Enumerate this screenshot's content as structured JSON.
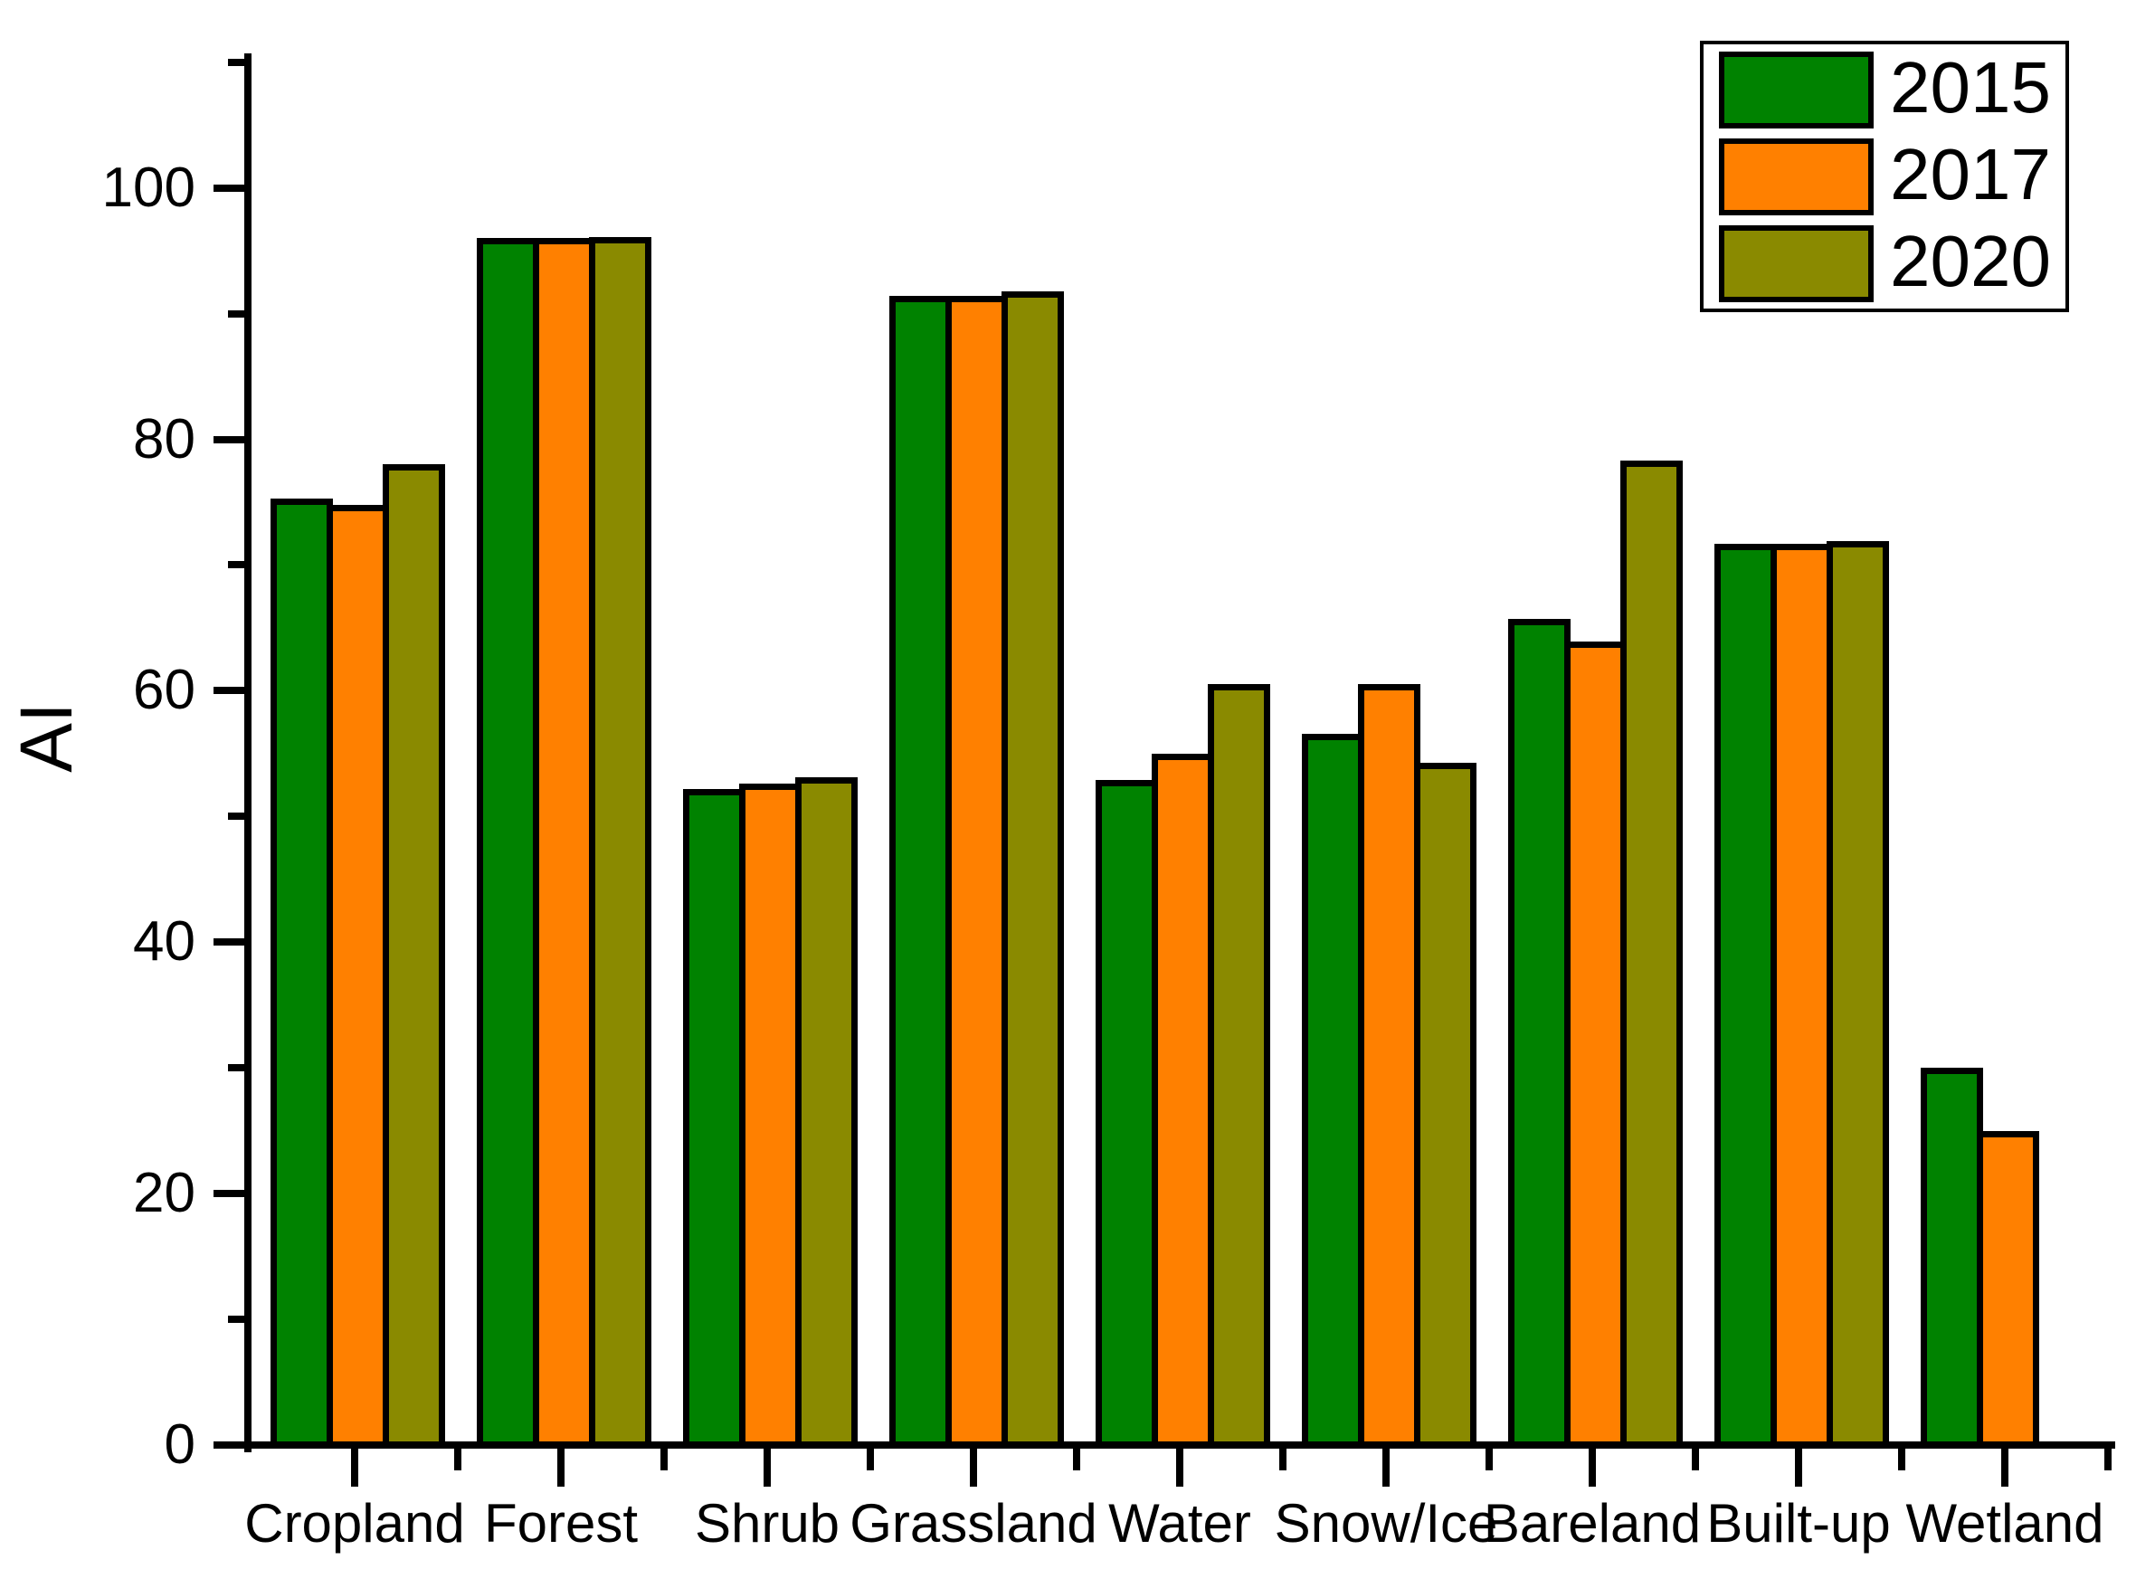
{
  "figure": {
    "background": "#ffffff"
  },
  "y_axis": {
    "label": "AI",
    "major_ticks": [
      "0",
      "20",
      "40",
      "60",
      "80",
      "100"
    ],
    "minor_ticks": [
      10,
      30,
      50,
      70,
      90,
      110
    ]
  },
  "x_axis": {
    "categories": [
      "Cropland",
      "Forest",
      "Shrub",
      "Grassland",
      "Water",
      "Snow/Ice",
      "Bareland",
      "Built-up",
      "Wetland"
    ]
  },
  "legend": {
    "position": "upper right"
  },
  "chart_data": {
    "type": "bar",
    "title": "",
    "xlabel": "",
    "ylabel": "AI",
    "ylim": [
      0,
      110.7
    ],
    "yticks": [
      0,
      20,
      40,
      60,
      80,
      100
    ],
    "yticks_minor": [
      10,
      30,
      50,
      70,
      90,
      110
    ],
    "grid": false,
    "legend_position": "upper right",
    "bar_border_color": "#000000",
    "categories": [
      "Cropland",
      "Forest",
      "Shrub",
      "Grassland",
      "Water",
      "Snow/Ice",
      "Bareland",
      "Built-up",
      "Wetland"
    ],
    "series": [
      {
        "name": "2015",
        "color": "#008200",
        "values": [
          75.3,
          96.0,
          52.2,
          91.4,
          52.9,
          56.6,
          65.7,
          71.7,
          30.0
        ]
      },
      {
        "name": "2017",
        "color": "#ff8000",
        "values": [
          74.8,
          96.0,
          52.6,
          91.4,
          55.0,
          60.5,
          63.9,
          71.7,
          25.0
        ]
      },
      {
        "name": "2020",
        "color": "#8a8a00",
        "values": [
          78.0,
          96.1,
          53.1,
          91.8,
          60.5,
          54.3,
          78.3,
          71.9,
          null
        ]
      }
    ]
  }
}
